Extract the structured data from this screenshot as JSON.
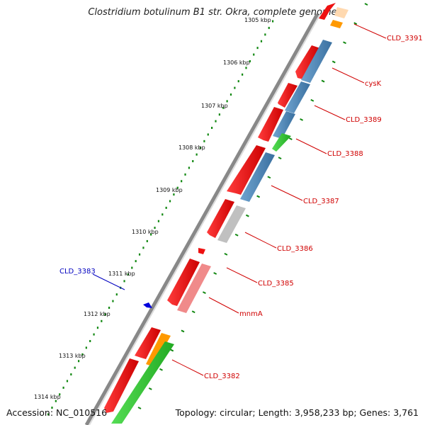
{
  "title": "Clostridium botulinum B1 str. Okra, complete genome",
  "footer": {
    "accession": "Accession: NC_010516",
    "summary": "Topology: circular; Length: 3,958,233 bp; Genes: 3,761"
  },
  "ticks": [
    "1305 kbp",
    "1306 kbp",
    "1307 kbp",
    "1308 kbp",
    "1309 kbp",
    "1310 kbp",
    "1311 kbp",
    "1312 kbp",
    "1313 kbp",
    "1314 kbp"
  ],
  "gene_labels": [
    "CLD_3391",
    "cysK",
    "CLD_3389",
    "CLD_3388",
    "CLD_3387",
    "CLD_3386",
    "CLD_3385",
    "mnmA",
    "CLD_3382",
    "CLD_3383"
  ],
  "colors": {
    "cds": "#ee1111",
    "blue": "#4a86b8",
    "green": "#33cc33",
    "grey": "#c0c0c0",
    "pink": "#f08a8a",
    "orange": "#ff9900",
    "peach": "#ffd9b0",
    "label_red": "#d00000",
    "label_blue": "#0000c0",
    "tick_green": "#118811"
  }
}
